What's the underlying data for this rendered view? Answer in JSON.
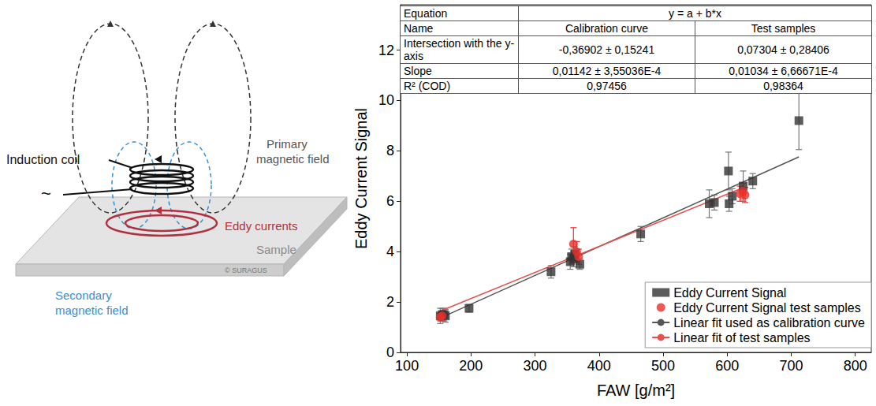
{
  "diagram": {
    "coil_label": "Induction coil",
    "source_symbol": "~",
    "primary_field": [
      "Primary",
      "magnetic field"
    ],
    "eddy_currents": "Eddy currents",
    "secondary_field": [
      "Secondary",
      "magnetic field"
    ],
    "sample": "Sample",
    "copyright": "© SURAGUS"
  },
  "chart_data": {
    "type": "scatter",
    "x_label": "FAW [g/m²]",
    "y_label": "Eddy Current Signal",
    "xlim": [
      90,
      825
    ],
    "xticks": [
      100,
      200,
      300,
      400,
      500,
      600,
      700,
      800
    ],
    "ylim": [
      0,
      13.8
    ],
    "yticks": [
      0,
      2,
      4,
      6,
      8,
      10,
      12
    ],
    "grid": false,
    "legend": "lower right",
    "series": [
      {
        "name": "Eddy Current Signal",
        "type": "scatter",
        "color": "#333333",
        "marker": "square",
        "x": [
          152,
          155,
          158,
          160,
          197,
          325,
          355,
          357,
          360,
          362,
          370,
          465,
          572,
          580,
          602,
          603,
          608,
          625,
          640,
          712
        ],
        "values": [
          1.45,
          1.5,
          1.5,
          1.45,
          1.75,
          3.2,
          3.6,
          3.8,
          3.7,
          3.9,
          3.5,
          4.7,
          5.9,
          5.95,
          7.2,
          5.9,
          6.2,
          6.6,
          6.8,
          9.2
        ],
        "errors": [
          0.3,
          0.25,
          0.25,
          0.25,
          0.15,
          0.25,
          0.3,
          0.3,
          0.3,
          0.3,
          0.2,
          0.3,
          0.55,
          0.3,
          0.75,
          0.3,
          0.3,
          0.6,
          0.3,
          1.15
        ]
      },
      {
        "name": "Eddy Current Signal test samples",
        "type": "scatter",
        "color": "#e8302a",
        "marker": "circle",
        "x": [
          152,
          155,
          360,
          365,
          368,
          620,
          625,
          628
        ],
        "values": [
          1.4,
          1.45,
          4.3,
          4.0,
          3.8,
          6.3,
          6.4,
          6.25
        ],
        "errors": [
          0.15,
          0.15,
          0.65,
          0.4,
          0.3,
          0.3,
          0.3,
          0.3
        ]
      },
      {
        "name": "Linear fit used as calibration curve",
        "type": "line",
        "color": "#555555",
        "x": [
          150,
          712
        ],
        "values": [
          1.34,
          7.76
        ]
      },
      {
        "name": "Linear fit of test samples",
        "type": "line",
        "color": "#e8504a",
        "x": [
          150,
          628
        ],
        "values": [
          1.62,
          6.57
        ]
      }
    ],
    "table": {
      "rows": [
        [
          "Equation",
          "y = a + b*x"
        ],
        [
          "Name",
          "Calibration curve",
          "Test samples"
        ],
        [
          "Intersection with the y-axis",
          "-0,36902 ± 0,15241",
          "0,07304 ± 0,28406"
        ],
        [
          "Slope",
          "0,01142 ± 3,55036E-4",
          "0,01034 ± 6,66671E-4"
        ],
        [
          "R² (COD)",
          "0,97456",
          "0,98364"
        ]
      ]
    }
  }
}
